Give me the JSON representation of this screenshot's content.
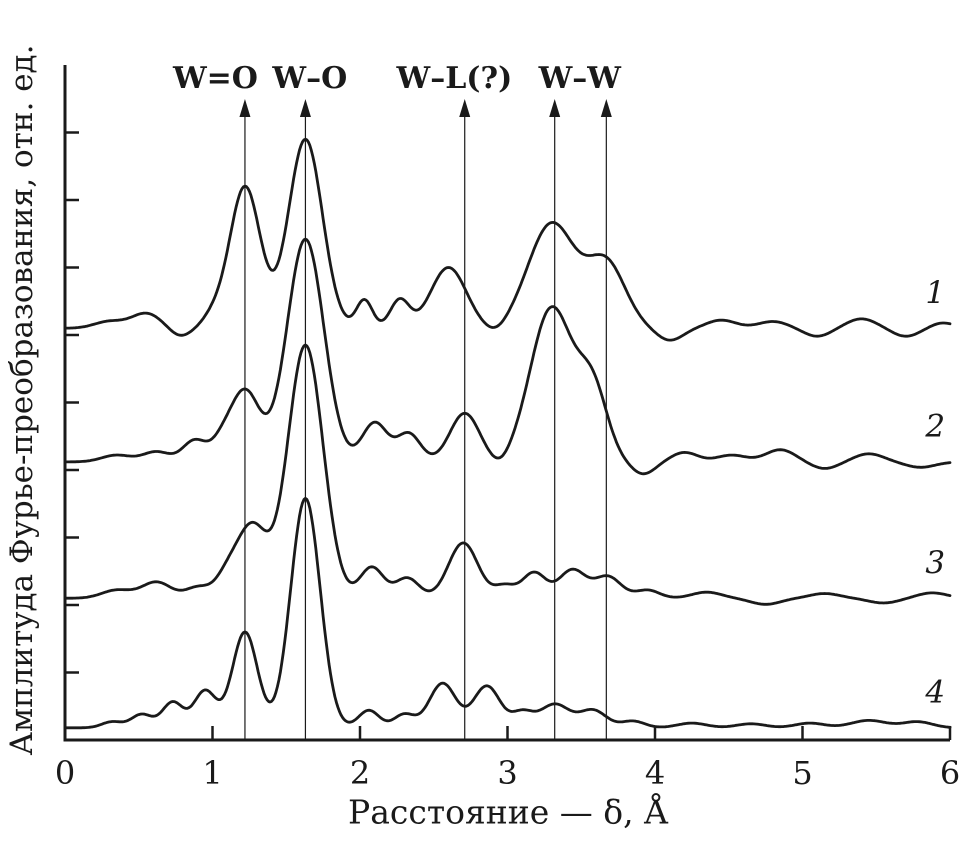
{
  "colors": {
    "ink": "#1a1a1a",
    "background": "#ffffff"
  },
  "chart_data": {
    "type": "line",
    "title": "",
    "xlabel": "Расстояние — δ, Å",
    "ylabel": "Амплитуда Фурье-преобразования, отн. ед.",
    "xlim": [
      0,
      6
    ],
    "ylim_units": [
      0,
      10
    ],
    "x_ticks": [
      0,
      1,
      2,
      3,
      4,
      5,
      6
    ],
    "y_tick_count": 9,
    "grid": false,
    "legend_position": "curve numbers 1–4 at right edge",
    "annotations": [
      {
        "label": "W=O",
        "label_x": 1.02,
        "lines_at": [
          1.22
        ]
      },
      {
        "label": "W–O",
        "label_x": 1.66,
        "lines_at": [
          1.63
        ]
      },
      {
        "label": "W–L(?)",
        "label_x": 2.64,
        "lines_at": [
          2.71
        ]
      },
      {
        "label": "W–W",
        "label_x": 3.49,
        "lines_at": [
          3.32,
          3.67
        ]
      }
    ],
    "series": [
      {
        "name": "1",
        "offset": 6.1,
        "label_x": 5.9,
        "peaks": [
          [
            0.3,
            0.1,
            0.1
          ],
          [
            0.55,
            0.22,
            0.1
          ],
          [
            0.78,
            -0.12,
            0.07
          ],
          [
            1.0,
            0.15,
            0.07
          ],
          [
            1.22,
            2.1,
            0.105
          ],
          [
            1.63,
            2.8,
            0.115
          ],
          [
            2.03,
            0.42,
            0.055
          ],
          [
            2.27,
            0.42,
            0.065
          ],
          [
            2.6,
            0.9,
            0.12
          ],
          [
            2.92,
            -0.1,
            0.07
          ],
          [
            3.3,
            1.55,
            0.16
          ],
          [
            3.67,
            0.95,
            0.13
          ],
          [
            4.1,
            -0.18,
            0.09
          ],
          [
            4.45,
            0.12,
            0.1
          ],
          [
            4.8,
            0.1,
            0.1
          ],
          [
            5.1,
            -0.12,
            0.09
          ],
          [
            5.4,
            0.14,
            0.1
          ],
          [
            5.7,
            -0.12,
            0.09
          ],
          [
            5.95,
            0.08,
            0.08
          ]
        ]
      },
      {
        "name": "2",
        "offset": 4.12,
        "label_x": 5.9,
        "peaks": [
          [
            0.35,
            0.1,
            0.1
          ],
          [
            0.62,
            0.15,
            0.09
          ],
          [
            0.88,
            0.32,
            0.08
          ],
          [
            1.06,
            0.22,
            0.07
          ],
          [
            1.22,
            1.05,
            0.1
          ],
          [
            1.63,
            3.3,
            0.125
          ],
          [
            2.1,
            0.58,
            0.085
          ],
          [
            2.33,
            0.42,
            0.08
          ],
          [
            2.71,
            0.72,
            0.1
          ],
          [
            2.95,
            -0.1,
            0.06
          ],
          [
            3.3,
            2.28,
            0.145
          ],
          [
            3.58,
            1.0,
            0.1
          ],
          [
            3.92,
            -0.18,
            0.08
          ],
          [
            4.2,
            0.14,
            0.09
          ],
          [
            4.52,
            0.1,
            0.1
          ],
          [
            4.85,
            0.18,
            0.1
          ],
          [
            5.15,
            -0.1,
            0.09
          ],
          [
            5.45,
            0.12,
            0.1
          ],
          [
            5.8,
            -0.08,
            0.1
          ]
        ]
      },
      {
        "name": "3",
        "offset": 2.1,
        "label_x": 5.9,
        "peaks": [
          [
            0.35,
            0.12,
            0.1
          ],
          [
            0.62,
            0.24,
            0.1
          ],
          [
            0.9,
            0.16,
            0.08
          ],
          [
            1.1,
            0.32,
            0.08
          ],
          [
            1.27,
            1.05,
            0.1
          ],
          [
            1.63,
            3.75,
            0.12
          ],
          [
            2.08,
            0.46,
            0.08
          ],
          [
            2.32,
            0.3,
            0.08
          ],
          [
            2.7,
            0.82,
            0.1
          ],
          [
            2.98,
            0.18,
            0.07
          ],
          [
            3.18,
            0.38,
            0.08
          ],
          [
            3.44,
            0.42,
            0.09
          ],
          [
            3.68,
            0.32,
            0.09
          ],
          [
            3.95,
            0.12,
            0.08
          ],
          [
            4.35,
            0.09,
            0.1
          ],
          [
            4.75,
            -0.09,
            0.1
          ],
          [
            5.15,
            0.07,
            0.1
          ],
          [
            5.55,
            -0.07,
            0.1
          ],
          [
            5.88,
            0.08,
            0.1
          ]
        ]
      },
      {
        "name": "4",
        "offset": 0.18,
        "label_x": 5.9,
        "peaks": [
          [
            0.32,
            0.09,
            0.07
          ],
          [
            0.52,
            0.2,
            0.07
          ],
          [
            0.73,
            0.38,
            0.07
          ],
          [
            0.95,
            0.55,
            0.075
          ],
          [
            1.22,
            1.42,
            0.085
          ],
          [
            1.63,
            3.4,
            0.1
          ],
          [
            2.06,
            0.26,
            0.07
          ],
          [
            2.3,
            0.2,
            0.07
          ],
          [
            2.56,
            0.66,
            0.09
          ],
          [
            2.86,
            0.62,
            0.09
          ],
          [
            3.1,
            0.22,
            0.07
          ],
          [
            3.32,
            0.35,
            0.1
          ],
          [
            3.58,
            0.26,
            0.09
          ],
          [
            3.85,
            0.1,
            0.08
          ],
          [
            4.25,
            0.07,
            0.1
          ],
          [
            4.65,
            0.06,
            0.1
          ],
          [
            5.05,
            0.07,
            0.1
          ],
          [
            5.45,
            0.11,
            0.12
          ],
          [
            5.78,
            0.09,
            0.1
          ]
        ]
      }
    ]
  }
}
